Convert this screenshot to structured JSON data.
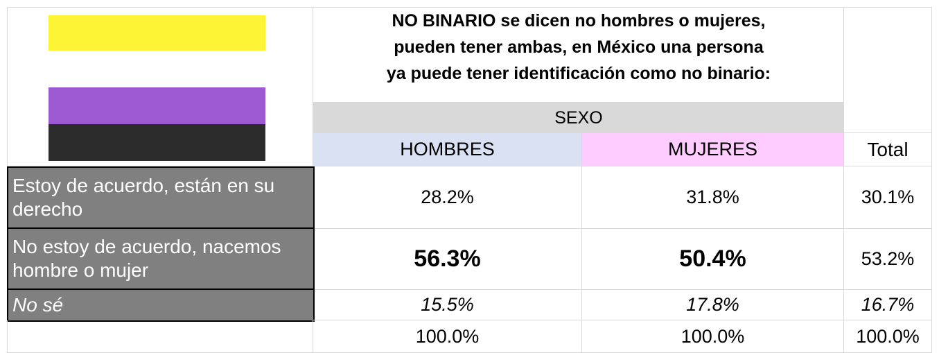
{
  "table": {
    "title_lines": [
      "NO BINARIO se dicen no hombres o mujeres,",
      "pueden tener ambas, en México una persona",
      "ya puede tener identificación como no binario:"
    ],
    "group_header": "SEXO",
    "columns": [
      "HOMBRES",
      "MUJERES",
      "Total"
    ],
    "rows": [
      [
        "Estoy de acuerdo, están en su derecho",
        "28.2%",
        "31.8%",
        "30.1%"
      ],
      [
        "No estoy de acuerdo, nacemos hombre o mujer",
        "56.3%",
        "50.4%",
        "53.2%"
      ],
      [
        "No sé",
        "15.5%",
        "17.8%",
        "16.7%"
      ]
    ],
    "totals": [
      "100.0%",
      "100.0%",
      "100.0%"
    ]
  }
}
